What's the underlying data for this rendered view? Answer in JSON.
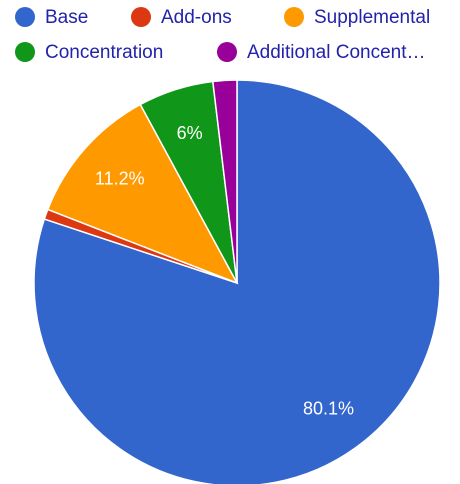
{
  "chart_data": {
    "type": "pie",
    "categories": [
      "Base",
      "Add-ons",
      "Supplemental",
      "Concentration",
      "Additional Concent…"
    ],
    "values": [
      80.1,
      0.8,
      11.2,
      6,
      1.9
    ],
    "value_labels": [
      "80.1%",
      null,
      "11.2%",
      "6%",
      null
    ],
    "colors": [
      "#3366cc",
      "#dc3912",
      "#ff9900",
      "#109618",
      "#990099"
    ],
    "legend": "top"
  }
}
